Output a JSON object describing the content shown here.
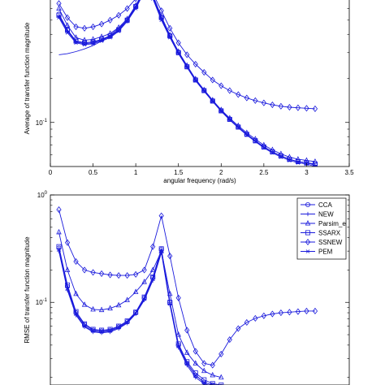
{
  "colors": {
    "series": "#1a1adc",
    "axis": "#000000",
    "background": "#ffffff"
  },
  "chart_data": [
    {
      "type": "line",
      "title": "",
      "xlabel": "angular frequency (rad/s)",
      "ylabel": "Average of transfer function magnitude",
      "yscale": "log",
      "xlim": [
        0,
        3.5
      ],
      "ylim": [
        0.05,
        0.8
      ],
      "xticks": [
        "0",
        "0.5",
        "1",
        "1.5",
        "2",
        "2.5",
        "3",
        "3.5"
      ],
      "yticks": [
        {
          "value": 0.1,
          "label": "10^-1"
        }
      ],
      "grid": false,
      "legend": "none",
      "series": [
        {
          "marker": "circle",
          "x": [
            0.1,
            0.2,
            0.3,
            0.4,
            0.5,
            0.6,
            0.7,
            0.8,
            0.9,
            1.0,
            1.1,
            1.2,
            1.3,
            1.4,
            1.5,
            1.6,
            1.7,
            1.8,
            1.9,
            2.0,
            2.1,
            2.2,
            2.3,
            2.4,
            2.5,
            2.6,
            2.7,
            2.8,
            2.9,
            3.0,
            3.1
          ],
          "y": [
            0.55,
            0.43,
            0.36,
            0.35,
            0.355,
            0.37,
            0.39,
            0.43,
            0.5,
            0.62,
            0.8,
            0.72,
            0.52,
            0.39,
            0.3,
            0.24,
            0.195,
            0.165,
            0.14,
            0.12,
            0.105,
            0.093,
            0.083,
            0.075,
            0.068,
            0.063,
            0.059,
            0.056,
            0.054,
            0.053,
            0.052
          ]
        },
        {
          "marker": "plus",
          "x": [
            0.1,
            0.2,
            0.3,
            0.4,
            0.5,
            0.6,
            0.7,
            0.8,
            0.9,
            1.0,
            1.1,
            1.2,
            1.3,
            1.4,
            1.5,
            1.6,
            1.7,
            1.8,
            1.9,
            2.0,
            2.1,
            2.2,
            2.3,
            2.4,
            2.5,
            2.6,
            2.7,
            2.8,
            2.9,
            3.0,
            3.1
          ],
          "y": [
            0.53,
            0.42,
            0.355,
            0.345,
            0.35,
            0.365,
            0.385,
            0.425,
            0.49,
            0.61,
            0.79,
            0.71,
            0.51,
            0.385,
            0.3,
            0.24,
            0.195,
            0.165,
            0.14,
            0.12,
            0.105,
            0.093,
            0.083,
            0.075,
            0.068,
            0.063,
            0.059,
            0.056,
            0.054,
            0.053,
            0.051
          ]
        },
        {
          "marker": "triangle",
          "x": [
            0.1,
            0.2,
            0.3,
            0.4,
            0.5,
            0.6,
            0.7,
            0.8,
            0.9,
            1.0,
            1.1,
            1.2,
            1.3,
            1.4,
            1.5,
            1.6,
            1.7,
            1.8,
            1.9,
            2.0,
            2.1,
            2.2,
            2.3,
            2.4,
            2.5,
            2.6,
            2.7,
            2.8,
            2.9,
            3.0,
            3.1
          ],
          "y": [
            0.6,
            0.46,
            0.38,
            0.365,
            0.37,
            0.385,
            0.405,
            0.445,
            0.51,
            0.63,
            0.81,
            0.74,
            0.53,
            0.395,
            0.305,
            0.245,
            0.198,
            0.167,
            0.142,
            0.122,
            0.107,
            0.095,
            0.085,
            0.077,
            0.07,
            0.065,
            0.061,
            0.058,
            0.056,
            0.055,
            0.054
          ]
        },
        {
          "marker": "square",
          "x": [
            0.1,
            0.2,
            0.3,
            0.4,
            0.5,
            0.6,
            0.7,
            0.8,
            0.9,
            1.0,
            1.1,
            1.2,
            1.3,
            1.4,
            1.5,
            1.6,
            1.7,
            1.8,
            1.9,
            2.0,
            2.1,
            2.2,
            2.3,
            2.4,
            2.5,
            2.6,
            2.7,
            2.8,
            2.9,
            3.0,
            3.1
          ],
          "y": [
            0.54,
            0.425,
            0.36,
            0.35,
            0.355,
            0.37,
            0.39,
            0.43,
            0.5,
            0.62,
            0.8,
            0.72,
            0.52,
            0.39,
            0.3,
            0.24,
            0.195,
            0.165,
            0.14,
            0.12,
            0.105,
            0.093,
            0.083,
            0.075,
            0.068,
            0.063,
            0.059,
            0.056,
            0.054,
            0.053,
            0.052
          ]
        },
        {
          "marker": "diamond",
          "x": [
            0.1,
            0.2,
            0.3,
            0.4,
            0.5,
            0.6,
            0.7,
            0.8,
            0.9,
            1.0,
            1.1,
            1.2,
            1.3,
            1.4,
            1.5,
            1.6,
            1.7,
            1.8,
            1.9,
            2.0,
            2.1,
            2.2,
            2.3,
            2.4,
            2.5,
            2.6,
            2.7,
            2.8,
            2.9,
            3.0,
            3.1
          ],
          "y": [
            0.65,
            0.52,
            0.45,
            0.44,
            0.45,
            0.47,
            0.5,
            0.54,
            0.6,
            0.7,
            0.82,
            0.76,
            0.58,
            0.44,
            0.35,
            0.29,
            0.25,
            0.22,
            0.195,
            0.178,
            0.165,
            0.155,
            0.147,
            0.141,
            0.136,
            0.132,
            0.129,
            0.127,
            0.126,
            0.125,
            0.124
          ]
        },
        {
          "marker": "x",
          "x": [
            0.1,
            0.2,
            0.3,
            0.4,
            0.5,
            0.6,
            0.7,
            0.8,
            0.9,
            1.0,
            1.1,
            1.2,
            1.3,
            1.4,
            1.5,
            1.6,
            1.7,
            1.8,
            1.9,
            2.0,
            2.1,
            2.2,
            2.3,
            2.4,
            2.5,
            2.6,
            2.7,
            2.8,
            2.9,
            3.0,
            3.1
          ],
          "y": [
            0.52,
            0.41,
            0.35,
            0.34,
            0.345,
            0.36,
            0.38,
            0.42,
            0.49,
            0.6,
            0.78,
            0.7,
            0.5,
            0.38,
            0.295,
            0.238,
            0.193,
            0.163,
            0.139,
            0.119,
            0.104,
            0.092,
            0.082,
            0.074,
            0.067,
            0.062,
            0.058,
            0.055,
            0.053,
            0.052,
            0.05
          ]
        },
        {
          "marker": "none",
          "x": [
            0.1,
            0.2,
            0.3,
            0.4,
            0.5,
            0.6,
            0.7,
            0.8,
            0.9,
            1.0,
            1.1,
            1.2,
            1.3,
            1.4,
            1.5,
            1.6,
            1.7,
            1.8,
            1.9,
            2.0,
            2.1,
            2.2,
            2.3,
            2.4,
            2.5,
            2.6,
            2.7,
            2.8,
            2.9,
            3.0,
            3.1
          ],
          "y": [
            0.29,
            0.295,
            0.305,
            0.318,
            0.335,
            0.36,
            0.395,
            0.44,
            0.5,
            0.6,
            0.8,
            0.72,
            0.52,
            0.39,
            0.3,
            0.24,
            0.195,
            0.165,
            0.14,
            0.12,
            0.105,
            0.093,
            0.083,
            0.075,
            0.068,
            0.063,
            0.059,
            0.056,
            0.054,
            0.053,
            0.052
          ]
        }
      ]
    },
    {
      "type": "line",
      "title": "",
      "xlabel": "",
      "ylabel": "RMSE of transfer function magnitude",
      "yscale": "log",
      "xlim": [
        0,
        3.5
      ],
      "ylim": [
        0.017,
        1.0
      ],
      "xticks": [],
      "yticks": [
        {
          "value": 1.0,
          "label": "10^0"
        },
        {
          "value": 0.1,
          "label": "10^-1"
        }
      ],
      "grid": false,
      "legend": "top-right",
      "series": [
        {
          "name": "CCA",
          "marker": "circle",
          "x": [
            0.1,
            0.2,
            0.3,
            0.4,
            0.5,
            0.6,
            0.7,
            0.8,
            0.9,
            1.0,
            1.1,
            1.2,
            1.3,
            1.4,
            1.5,
            1.6,
            1.7,
            1.8,
            1.9,
            2.0
          ],
          "y": [
            0.32,
            0.14,
            0.08,
            0.062,
            0.055,
            0.054,
            0.055,
            0.059,
            0.066,
            0.08,
            0.11,
            0.17,
            0.31,
            0.1,
            0.04,
            0.027,
            0.021,
            0.018,
            0.017,
            0.0165
          ]
        },
        {
          "name": "NEW",
          "marker": "plus",
          "x": [
            0.1,
            0.2,
            0.3,
            0.4,
            0.5,
            0.6,
            0.7,
            0.8,
            0.9,
            1.0,
            1.1,
            1.2,
            1.3,
            1.4,
            1.5,
            1.6,
            1.7,
            1.8,
            1.9,
            2.0
          ],
          "y": [
            0.3,
            0.13,
            0.076,
            0.059,
            0.053,
            0.052,
            0.053,
            0.057,
            0.064,
            0.078,
            0.105,
            0.16,
            0.29,
            0.095,
            0.038,
            0.026,
            0.02,
            0.0175,
            0.0165,
            0.016
          ]
        },
        {
          "name": "Parsim_e",
          "marker": "triangle",
          "x": [
            0.1,
            0.2,
            0.3,
            0.4,
            0.5,
            0.6,
            0.7,
            0.8,
            0.9,
            1.0,
            1.1,
            1.2,
            1.3,
            1.4,
            1.5,
            1.6,
            1.7,
            1.8,
            1.9,
            2.0
          ],
          "y": [
            0.45,
            0.2,
            0.12,
            0.095,
            0.086,
            0.085,
            0.088,
            0.094,
            0.105,
            0.125,
            0.155,
            0.2,
            0.3,
            0.12,
            0.05,
            0.034,
            0.027,
            0.023,
            0.021,
            0.02
          ]
        },
        {
          "name": "SSARX",
          "marker": "square",
          "x": [
            0.1,
            0.2,
            0.3,
            0.4,
            0.5,
            0.6,
            0.7,
            0.8,
            0.9,
            1.0,
            1.1,
            1.2,
            1.3,
            1.4,
            1.5,
            1.6,
            1.7,
            1.8,
            1.9,
            2.0
          ],
          "y": [
            0.33,
            0.145,
            0.082,
            0.063,
            0.056,
            0.055,
            0.056,
            0.06,
            0.067,
            0.081,
            0.112,
            0.172,
            0.315,
            0.1,
            0.041,
            0.028,
            0.022,
            0.019,
            0.0175,
            0.017
          ]
        },
        {
          "name": "SSNEW",
          "marker": "diamond",
          "x": [
            0.1,
            0.2,
            0.3,
            0.4,
            0.5,
            0.6,
            0.7,
            0.8,
            0.9,
            1.0,
            1.1,
            1.2,
            1.3,
            1.4,
            1.5,
            1.6,
            1.7,
            1.8,
            1.9,
            2.0,
            2.1,
            2.2,
            2.3,
            2.4,
            2.5,
            2.6,
            2.7,
            2.8,
            2.9,
            3.0,
            3.1
          ],
          "y": [
            0.73,
            0.36,
            0.24,
            0.2,
            0.19,
            0.185,
            0.18,
            0.178,
            0.178,
            0.182,
            0.2,
            0.33,
            0.64,
            0.27,
            0.11,
            0.055,
            0.035,
            0.027,
            0.026,
            0.033,
            0.045,
            0.057,
            0.065,
            0.071,
            0.075,
            0.078,
            0.08,
            0.081,
            0.082,
            0.083,
            0.083
          ]
        },
        {
          "name": "PEM",
          "marker": "x",
          "x": [
            0.1,
            0.2,
            0.3,
            0.4,
            0.5,
            0.6,
            0.7,
            0.8,
            0.9,
            1.0,
            1.1,
            1.2,
            1.3,
            1.4,
            1.5,
            1.6,
            1.7,
            1.8,
            1.9,
            2.0
          ],
          "y": [
            0.31,
            0.135,
            0.078,
            0.06,
            0.054,
            0.053,
            0.054,
            0.058,
            0.065,
            0.079,
            0.107,
            0.165,
            0.3,
            0.097,
            0.039,
            0.027,
            0.021,
            0.018,
            0.017,
            0.0163
          ]
        }
      ]
    }
  ]
}
